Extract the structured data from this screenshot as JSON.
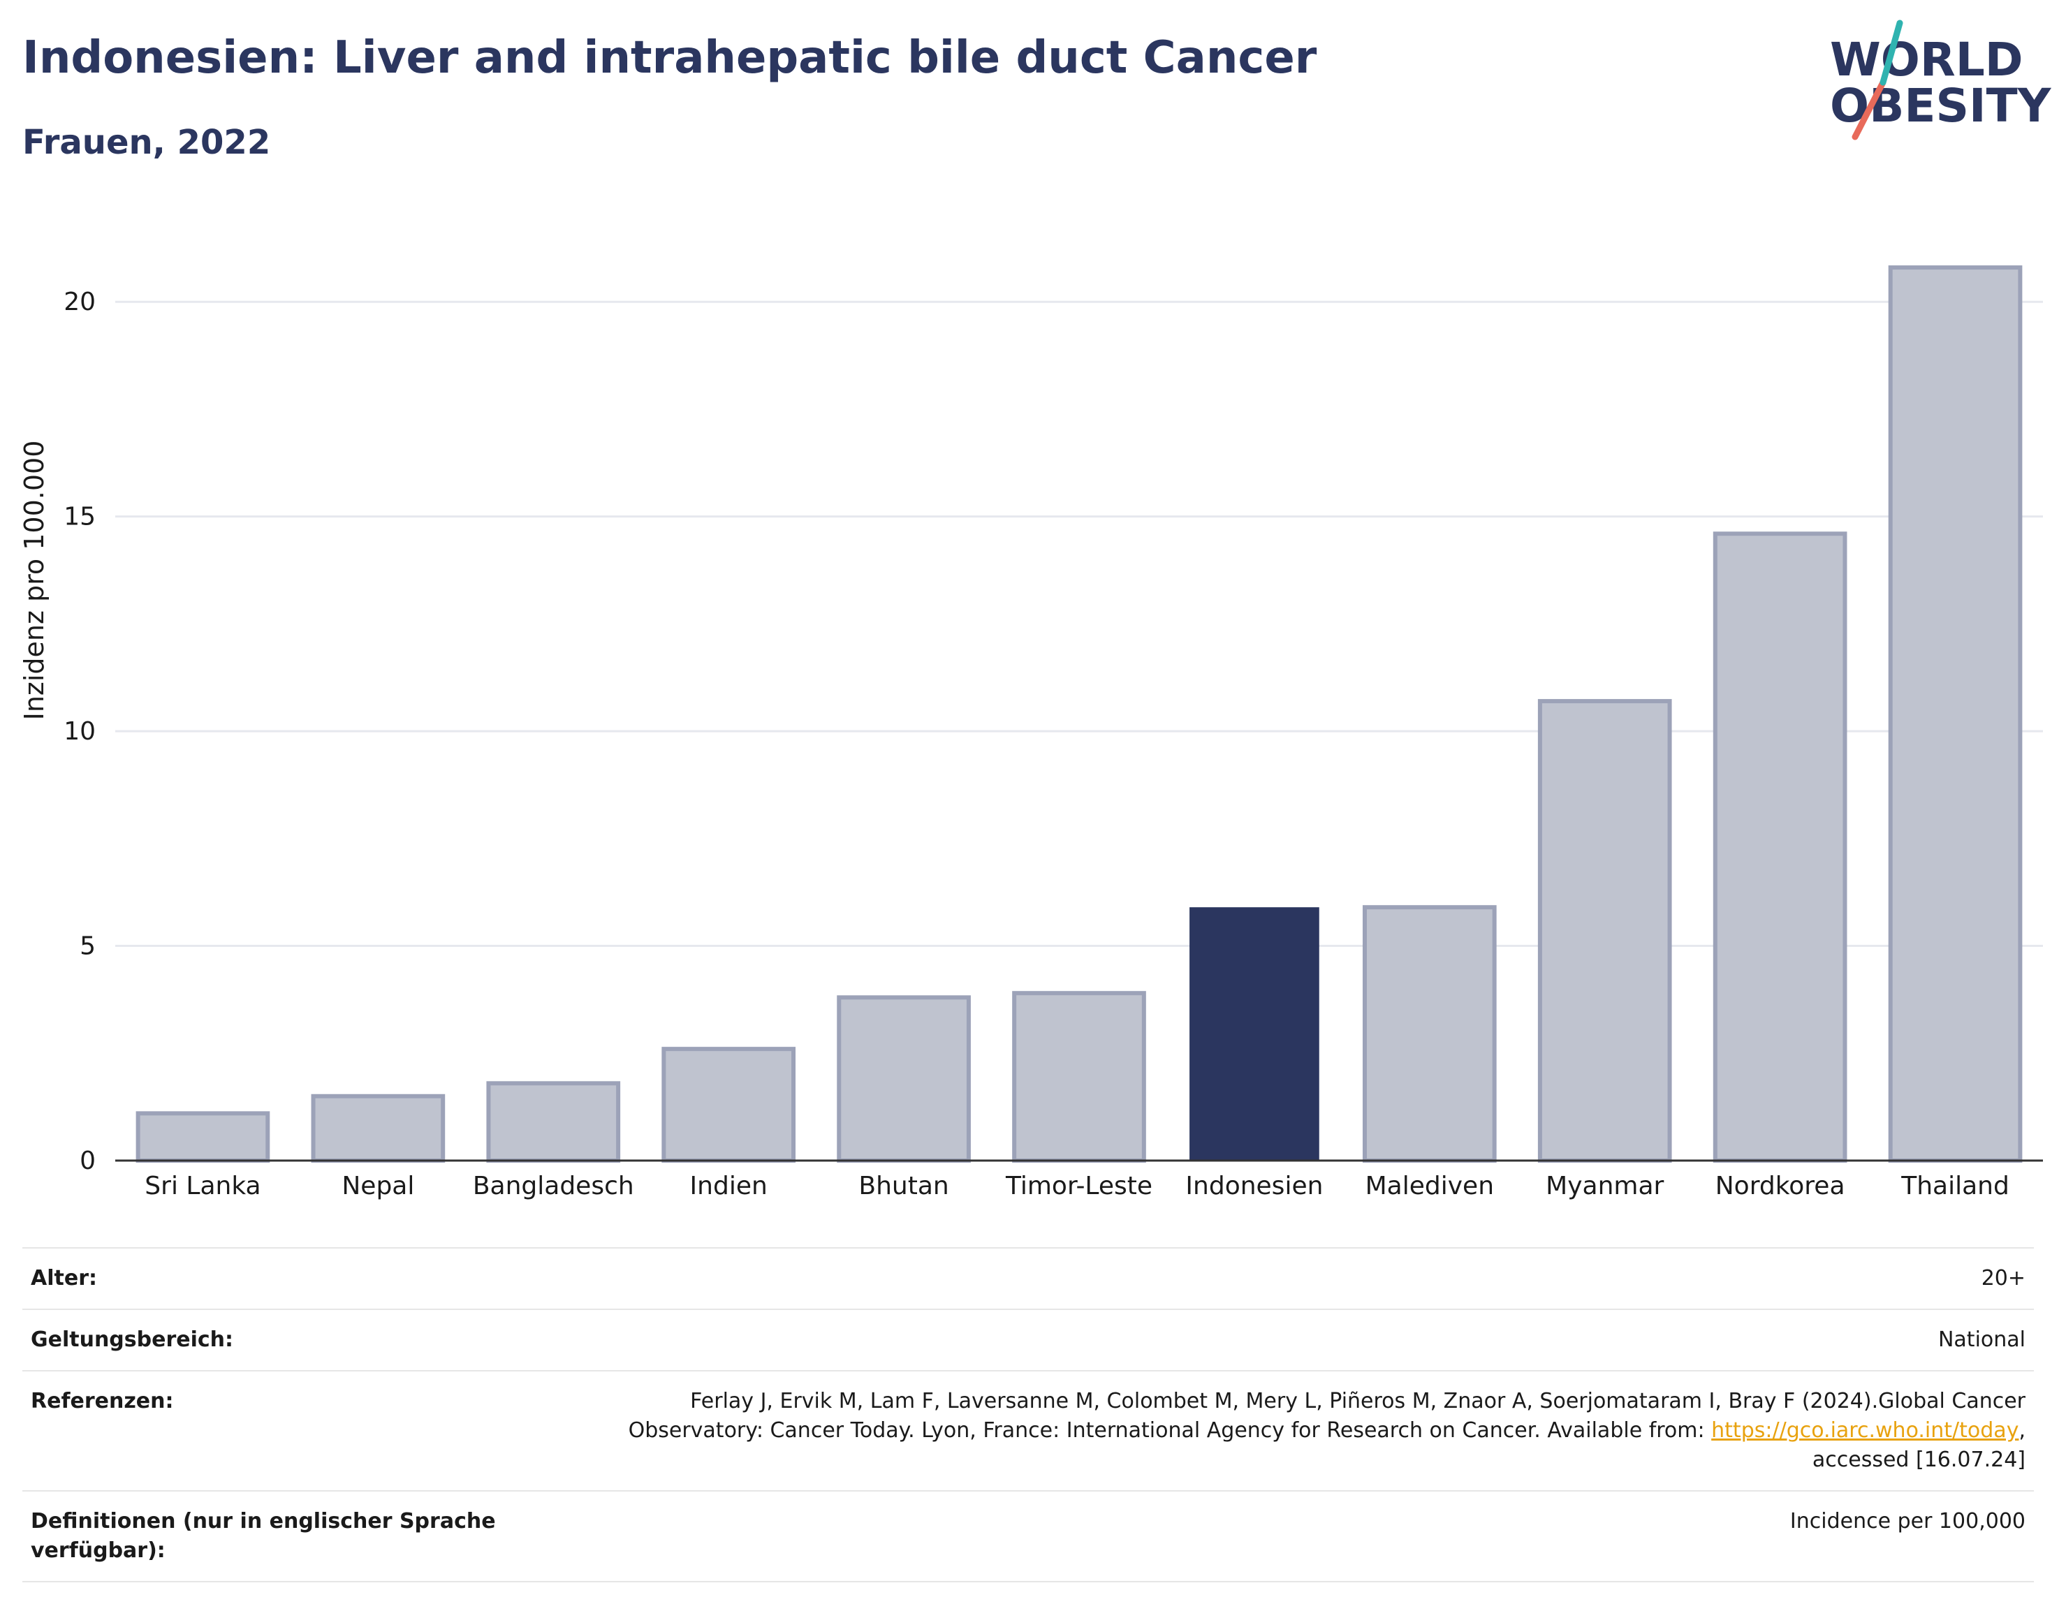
{
  "title": "Indonesien: Liver and intrahepatic bile duct Cancer",
  "subtitle": "Frauen, 2022",
  "logo": {
    "line1": "WORLD",
    "line2": "OBESITY"
  },
  "colors": {
    "highlight": "#2b365f",
    "bar": "#bfc3cf",
    "bar_border": "#9ca2b8",
    "accent_teal": "#2fb3b0",
    "accent_red": "#e86a5a"
  },
  "chart_data": {
    "type": "bar",
    "categories": [
      "Sri Lanka",
      "Nepal",
      "Bangladesch",
      "Indien",
      "Bhutan",
      "Timor-Leste",
      "Indonesien",
      "Malediven",
      "Myanmar",
      "Nordkorea",
      "Thailand"
    ],
    "values": [
      1.1,
      1.5,
      1.8,
      2.6,
      3.8,
      3.9,
      5.9,
      5.9,
      10.7,
      14.6,
      20.8
    ],
    "highlight": "Indonesien",
    "ylabel": "Inzidenz pro 100.000",
    "xlabel": "",
    "ylim": [
      0,
      21.5
    ],
    "yticks": [
      0,
      5,
      10,
      15,
      20
    ],
    "grid": true
  },
  "meta": {
    "age_label": "Alter:",
    "age_value": "20+",
    "scope_label": "Geltungsbereich:",
    "scope_value": "National",
    "ref_label": "Referenzen:",
    "ref_text1": "Ferlay J, Ervik M, Lam F, Laversanne M, Colombet M, Mery L, Piñeros M, Znaor A, Soerjomataram I, Bray F (2024).Global Cancer Observatory: Cancer Today. Lyon, France: International Agency for Research on Cancer. Available from: ",
    "ref_link": "https://gco.iarc.who.int/today",
    "ref_text2": ", accessed [16.07.24]",
    "def_label": "Definitionen (nur in englischer Sprache verfügbar):",
    "def_value": "Incidence per 100,000"
  }
}
